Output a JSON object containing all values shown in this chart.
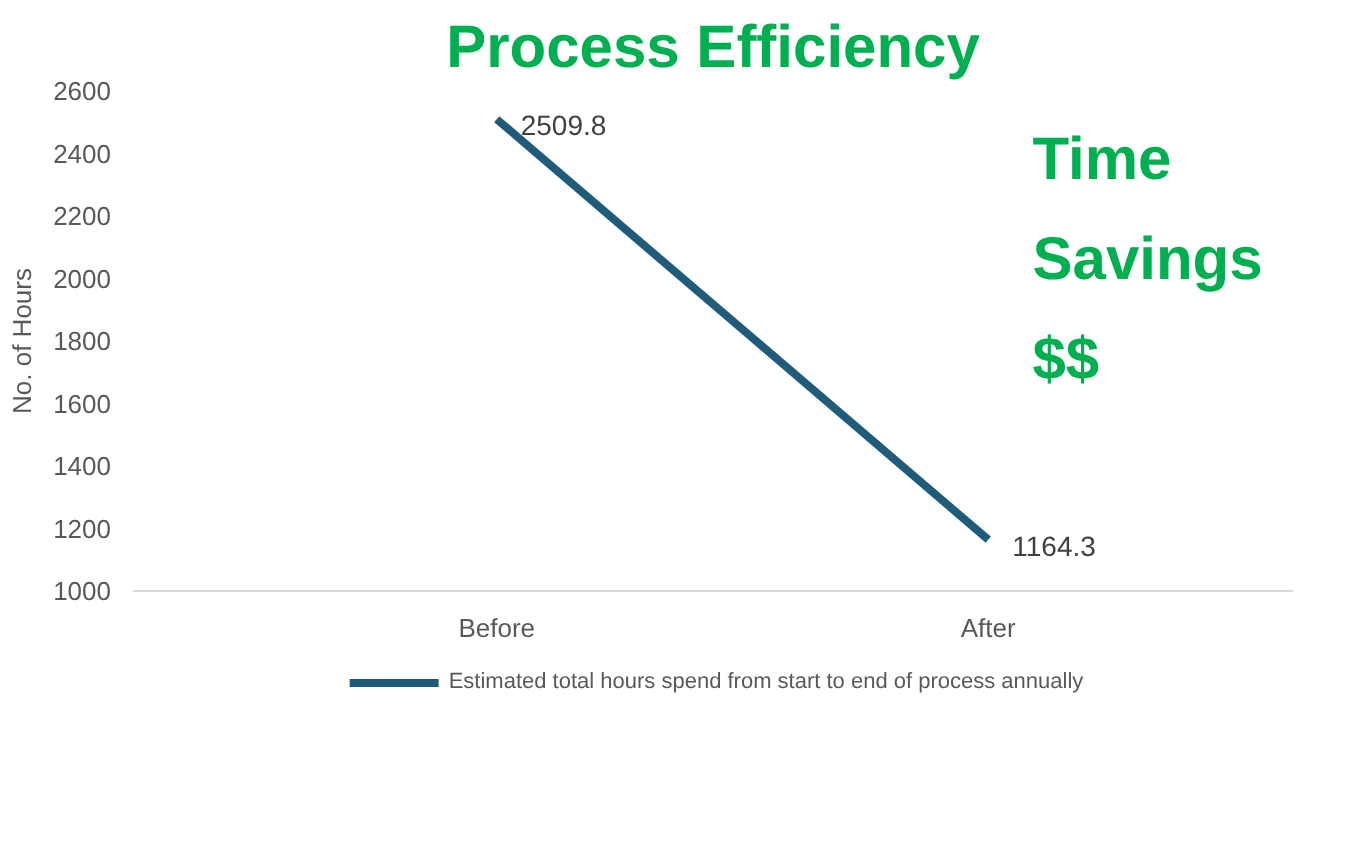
{
  "chart_data": {
    "type": "line",
    "title": "Process Efficiency",
    "ylabel": "No. of Hours",
    "categories": [
      "Before",
      "After"
    ],
    "series": [
      {
        "name": "Estimated total hours spend from start to end of process annually",
        "color": "#1f5c7a",
        "values": [
          2509.8,
          1164.3
        ]
      }
    ],
    "data_labels": true,
    "ylim": [
      1000,
      2600
    ],
    "yticks": [
      1000,
      1200,
      1400,
      1600,
      1800,
      2000,
      2200,
      2400,
      2600
    ],
    "grid": false,
    "legend": "bottom",
    "marker": "none",
    "annotations": [
      "Time Savings $$"
    ]
  }
}
